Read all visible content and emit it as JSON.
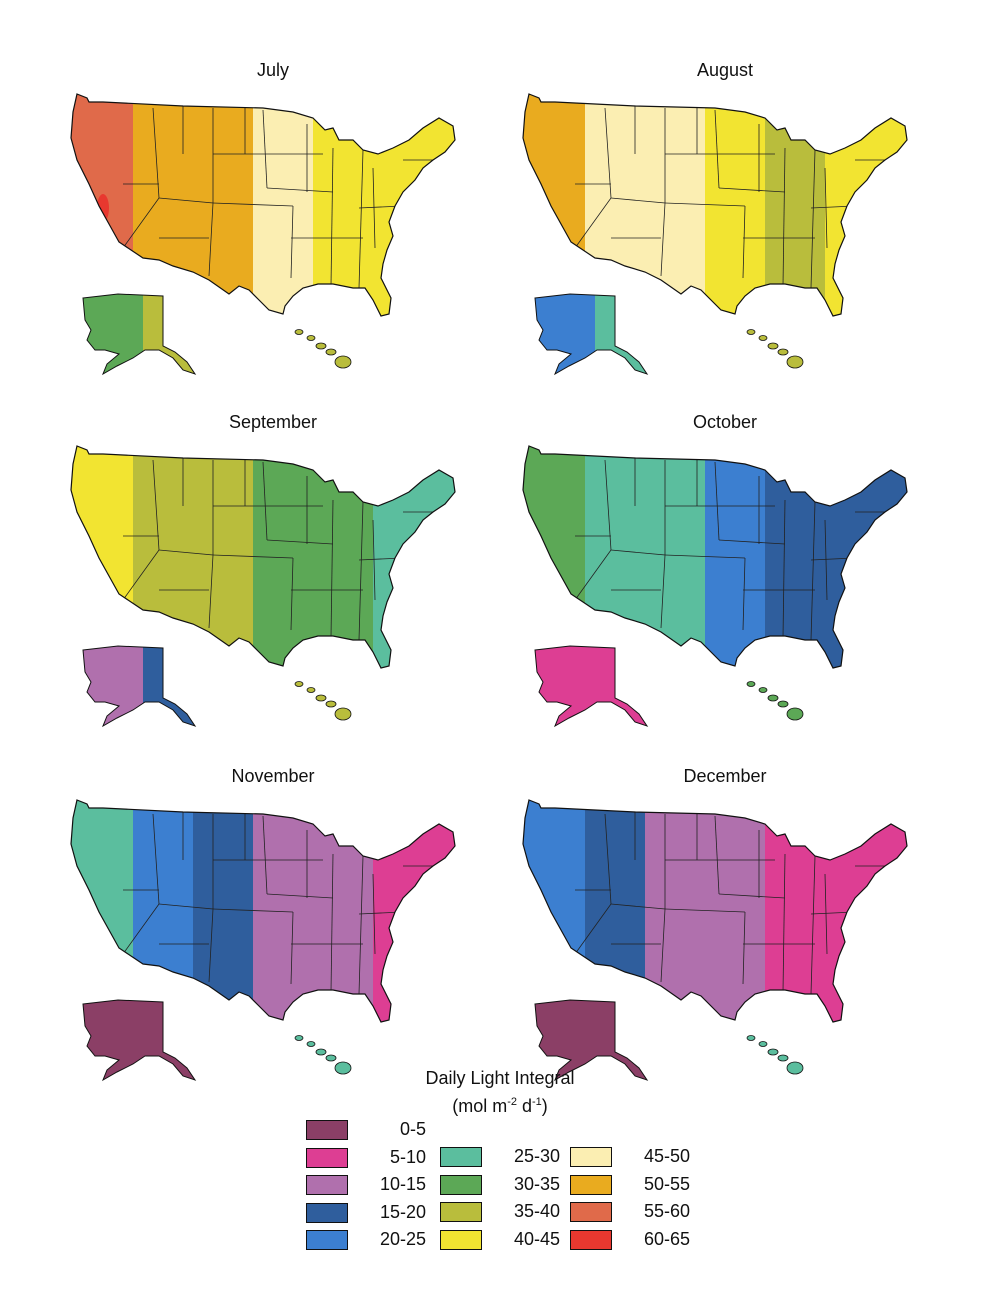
{
  "maps": [
    {
      "title": "July",
      "bands": [
        "55-60",
        "50-55",
        "50-55",
        "45-50",
        "40-45",
        "40-45"
      ],
      "alaska": "30-35",
      "alaska_east": "35-40",
      "hawaii": "35-40",
      "hot_spot": "60-65"
    },
    {
      "title": "August",
      "bands": [
        "50-55",
        "45-50",
        "45-50",
        "40-45",
        "35-40",
        "40-45"
      ],
      "alaska": "20-25",
      "alaska_east": "25-30",
      "hawaii": "35-40"
    },
    {
      "title": "September",
      "bands": [
        "40-45",
        "35-40",
        "35-40",
        "30-35",
        "30-35",
        "25-30"
      ],
      "alaska": "10-15",
      "alaska_east": "15-20",
      "hawaii": "35-40"
    },
    {
      "title": "October",
      "bands": [
        "30-35",
        "25-30",
        "25-30",
        "20-25",
        "15-20",
        "15-20"
      ],
      "alaska": "5-10",
      "alaska_east": "5-10",
      "hawaii": "30-35"
    },
    {
      "title": "November",
      "bands": [
        "25-30",
        "20-25",
        "15-20",
        "10-15",
        "10-15",
        "5-10"
      ],
      "alaska": "0-5",
      "alaska_east": "0-5",
      "hawaii": "25-30"
    },
    {
      "title": "December",
      "bands": [
        "20-25",
        "15-20",
        "10-15",
        "10-15",
        "5-10",
        "5-10"
      ],
      "alaska": "0-5",
      "alaska_east": "0-5",
      "hawaii": "25-30"
    }
  ],
  "legend": {
    "title": "Daily Light Integral",
    "units_prefix": "(mol m",
    "units_exp1": "-2",
    "units_mid": " d",
    "units_exp2": "-1",
    "units_suffix": ")",
    "items": [
      {
        "label": "0-5",
        "color": "#8B3F66"
      },
      {
        "label": "5-10",
        "color": "#DD3E93"
      },
      {
        "label": "10-15",
        "color": "#B070AD"
      },
      {
        "label": "15-20",
        "color": "#2F5E9D"
      },
      {
        "label": "20-25",
        "color": "#3C7FD0"
      },
      {
        "label": "25-30",
        "color": "#5BBE9E"
      },
      {
        "label": "30-35",
        "color": "#5CA856"
      },
      {
        "label": "35-40",
        "color": "#B9BD3C"
      },
      {
        "label": "40-45",
        "color": "#F2E431"
      },
      {
        "label": "45-50",
        "color": "#FBEEB2"
      },
      {
        "label": "50-55",
        "color": "#E9AB1F"
      },
      {
        "label": "55-60",
        "color": "#E06A4A"
      },
      {
        "label": "60-65",
        "color": "#E8382F"
      }
    ]
  }
}
